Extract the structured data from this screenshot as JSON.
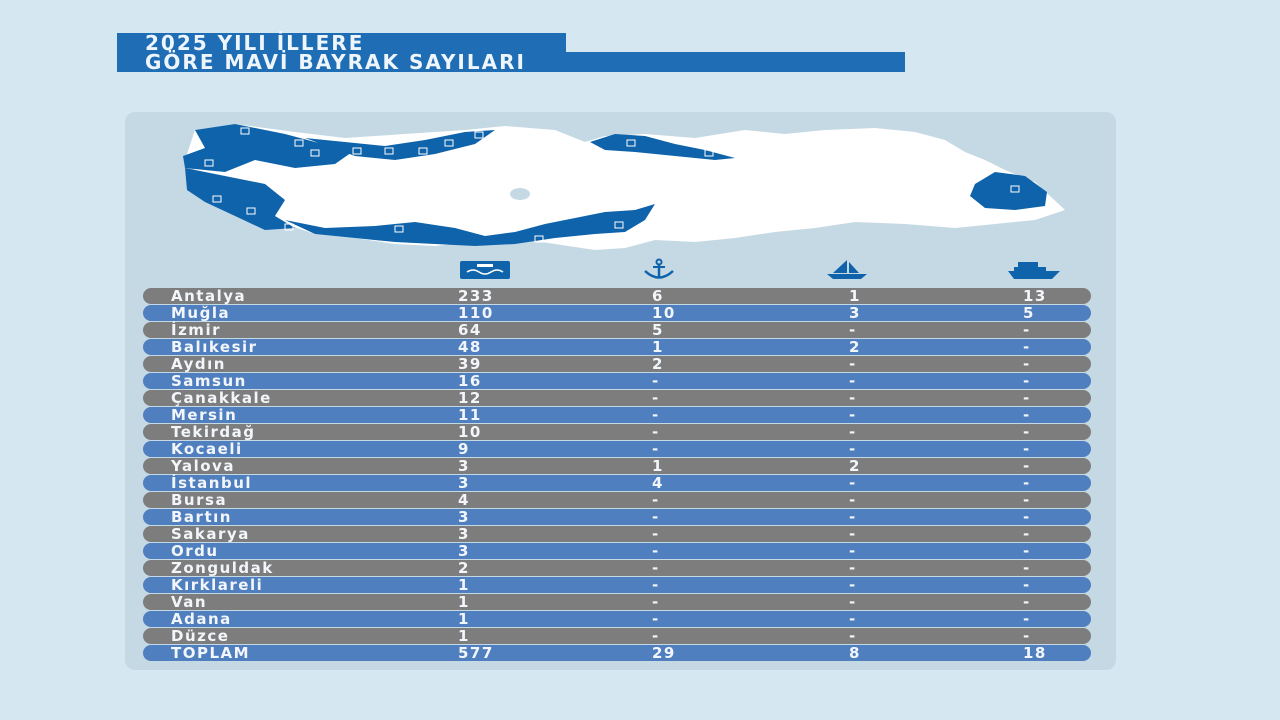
{
  "title": {
    "line1": "2025 YILI İLLERE",
    "line2": "GÖRE MAVİ BAYRAK SAYILARI"
  },
  "colors": {
    "background": "#d5e7f1",
    "title_bar": "#1f6db5",
    "map_highlight": "#0e63ab",
    "row_gray": "#7d7d7d",
    "row_blue": "#4f7fbf"
  },
  "column_icons": [
    "beach-icon",
    "anchor-icon",
    "sailboat-icon",
    "ship-icon"
  ],
  "chart_data": {
    "type": "table",
    "columns": [
      "",
      "beach",
      "marina",
      "yacht",
      "tour boat"
    ],
    "rows": [
      {
        "province": "Antalya",
        "values": [
          "233",
          "6",
          "1",
          "13"
        ]
      },
      {
        "province": "Muğla",
        "values": [
          "110",
          "10",
          "3",
          "5"
        ]
      },
      {
        "province": "İzmir",
        "values": [
          "64",
          "5",
          "-",
          "-"
        ]
      },
      {
        "province": "Balıkesir",
        "values": [
          "48",
          "1",
          "2",
          "-"
        ]
      },
      {
        "province": "Aydın",
        "values": [
          "39",
          "2",
          "-",
          "-"
        ]
      },
      {
        "province": "Samsun",
        "values": [
          "16",
          "-",
          "-",
          "-"
        ]
      },
      {
        "province": "Çanakkale",
        "values": [
          "12",
          "-",
          "-",
          "-"
        ]
      },
      {
        "province": "Mersin",
        "values": [
          "11",
          "-",
          "-",
          "-"
        ]
      },
      {
        "province": "Tekirdağ",
        "values": [
          "10",
          "-",
          "-",
          "-"
        ]
      },
      {
        "province": "Kocaeli",
        "values": [
          "9",
          "-",
          "-",
          "-"
        ]
      },
      {
        "province": "Yalova",
        "values": [
          "3",
          "1",
          "2",
          "-"
        ]
      },
      {
        "province": "İstanbul",
        "values": [
          "3",
          "4",
          "-",
          "-"
        ]
      },
      {
        "province": "Bursa",
        "values": [
          "4",
          "-",
          "-",
          "-"
        ]
      },
      {
        "province": "Bartın",
        "values": [
          "3",
          "-",
          "-",
          "-"
        ]
      },
      {
        "province": "Sakarya",
        "values": [
          "3",
          "-",
          "-",
          "-"
        ]
      },
      {
        "province": "Ordu",
        "values": [
          "3",
          "-",
          "-",
          "-"
        ]
      },
      {
        "province": "Zonguldak",
        "values": [
          "2",
          "-",
          "-",
          "-"
        ]
      },
      {
        "province": "Kırklareli",
        "values": [
          "1",
          "-",
          "-",
          "-"
        ]
      },
      {
        "province": "Van",
        "values": [
          "1",
          "-",
          "-",
          "-"
        ]
      },
      {
        "province": "Adana",
        "values": [
          "1",
          "-",
          "-",
          "-"
        ]
      },
      {
        "province": "Düzce",
        "values": [
          "1",
          "-",
          "-",
          "-"
        ]
      }
    ],
    "total": {
      "label": "TOPLAM",
      "values": [
        "577",
        "29",
        "8",
        "18"
      ]
    }
  }
}
